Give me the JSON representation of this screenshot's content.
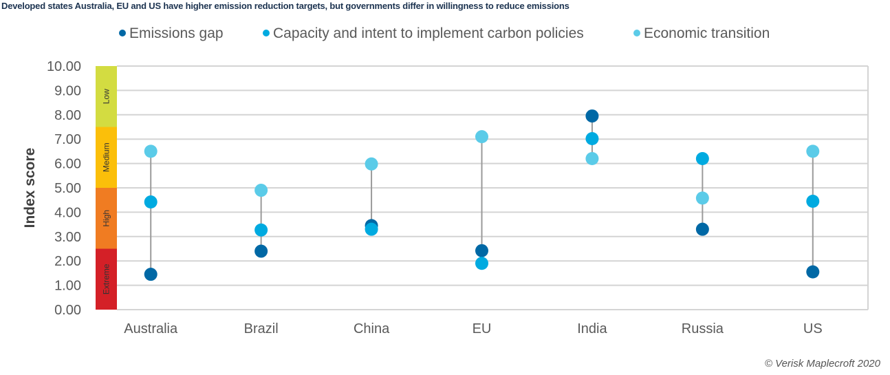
{
  "chart_data": {
    "type": "scatter",
    "title": "Developed states Australia, EU and US have higher emission reduction targets, but governments differ in willingness to reduce emissions",
    "xlabel": "",
    "ylabel": "Index score",
    "ylim": [
      0,
      10
    ],
    "yticks": [
      "0.00",
      "1.00",
      "2.00",
      "3.00",
      "4.00",
      "5.00",
      "6.00",
      "7.00",
      "8.00",
      "9.00",
      "10.00"
    ],
    "grid": true,
    "legend_position": "top",
    "categories": [
      "Australia",
      "Brazil",
      "China",
      "EU",
      "India",
      "Russia",
      "US"
    ],
    "series": [
      {
        "name": "Emissions gap",
        "color": "#0068a5",
        "values": [
          1.45,
          2.4,
          3.45,
          2.42,
          7.95,
          3.3,
          1.55
        ]
      },
      {
        "name": "Capacity and intent to implement carbon policies",
        "color": "#00aae0",
        "values": [
          4.42,
          3.27,
          3.3,
          1.9,
          7.02,
          6.2,
          4.45
        ]
      },
      {
        "name": "Economic transition",
        "color": "#5bcbe8",
        "values": [
          6.5,
          4.9,
          5.98,
          7.1,
          6.2,
          4.58,
          6.5
        ]
      }
    ],
    "risk_bands": [
      {
        "label": "Extreme",
        "from": 0,
        "to": 2.5,
        "color": "#d42027"
      },
      {
        "label": "High",
        "from": 2.5,
        "to": 5,
        "color": "#f07c22"
      },
      {
        "label": "Medium",
        "from": 5,
        "to": 7.5,
        "color": "#fbbf0a"
      },
      {
        "label": "Low",
        "from": 7.5,
        "to": 10,
        "color": "#d3dc41"
      }
    ]
  },
  "credit": "© Verisk Maplecroft 2020"
}
